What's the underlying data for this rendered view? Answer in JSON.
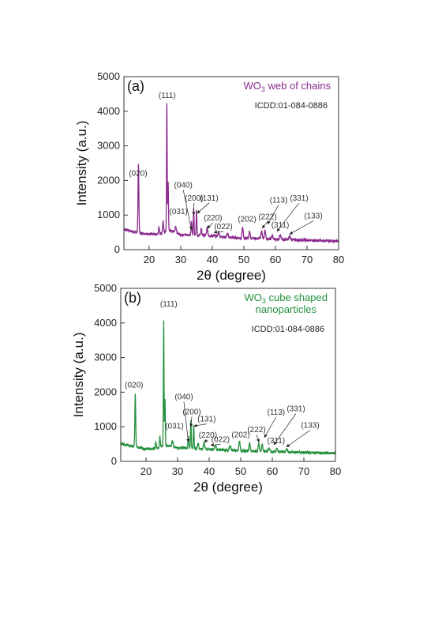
{
  "colors": {
    "a": "#8b2a8e",
    "b": "#23903c",
    "axis": "#333333"
  },
  "chart_data": [
    {
      "type": "line",
      "panel": "(a)",
      "title": "",
      "legend": {
        "main": "WO",
        "sub": "3",
        "rest": " web of chains",
        "lines": [],
        "placement": "top-right"
      },
      "reference": "ICDD:01-084-0886",
      "xlabel": "2θ (degree)",
      "ylabel": "Intensity (a.u.)",
      "xlim": [
        12,
        80
      ],
      "ylim": [
        0,
        5000
      ],
      "xticks": [
        20,
        30,
        40,
        50,
        60,
        70,
        80
      ],
      "yticks": [
        0,
        1000,
        2000,
        3000,
        4000,
        5000
      ],
      "grid": false,
      "baseline": [
        [
          12,
          590
        ],
        [
          14,
          540
        ],
        [
          16,
          500
        ],
        [
          18,
          470
        ],
        [
          20,
          450
        ],
        [
          22,
          440
        ],
        [
          24,
          480
        ],
        [
          26,
          560
        ],
        [
          28,
          520
        ],
        [
          30,
          430
        ],
        [
          34,
          420
        ],
        [
          38,
          410
        ],
        [
          42,
          380
        ],
        [
          46,
          350
        ],
        [
          50,
          330
        ],
        [
          55,
          320
        ],
        [
          60,
          300
        ],
        [
          65,
          290
        ],
        [
          70,
          275
        ],
        [
          75,
          260
        ],
        [
          80,
          250
        ]
      ],
      "peaks": [
        {
          "x": 16.6,
          "y": 1980,
          "w": 0.3
        },
        {
          "x": 23.1,
          "y": 200,
          "w": 0.3
        },
        {
          "x": 24.4,
          "y": 330,
          "w": 0.3
        },
        {
          "x": 25.6,
          "y": 3700,
          "w": 0.22
        },
        {
          "x": 26.0,
          "y": 1400,
          "w": 0.25
        },
        {
          "x": 28.4,
          "y": 180,
          "w": 0.4
        },
        {
          "x": 33.4,
          "y": 380,
          "w": 0.3
        },
        {
          "x": 34.1,
          "y": 780,
          "w": 0.25
        },
        {
          "x": 35.0,
          "y": 720,
          "w": 0.25
        },
        {
          "x": 36.5,
          "y": 180,
          "w": 0.4
        },
        {
          "x": 38.4,
          "y": 230,
          "w": 0.4
        },
        {
          "x": 42.0,
          "y": 120,
          "w": 0.5
        },
        {
          "x": 44.8,
          "y": 100,
          "w": 0.5
        },
        {
          "x": 49.6,
          "y": 310,
          "w": 0.4
        },
        {
          "x": 51.8,
          "y": 200,
          "w": 0.4
        },
        {
          "x": 55.6,
          "y": 230,
          "w": 0.4
        },
        {
          "x": 56.7,
          "y": 250,
          "w": 0.4
        },
        {
          "x": 59.0,
          "y": 100,
          "w": 0.5
        },
        {
          "x": 61.5,
          "y": 110,
          "w": 0.5
        },
        {
          "x": 64.5,
          "y": 90,
          "w": 0.5
        }
      ],
      "annotations": [
        {
          "text": "(020)",
          "x": 16.5,
          "y": 2140,
          "arrow": null
        },
        {
          "text": "(111)",
          "x": 25.7,
          "y": 4380,
          "arrow": null
        },
        {
          "text": "(040)",
          "x": 30.8,
          "y": 1790,
          "arrow": [
            33.4,
            580
          ]
        },
        {
          "text": "(031)",
          "x": 29.3,
          "y": 1030,
          "arrow": null
        },
        {
          "text": "(200)",
          "x": 34.2,
          "y": 1420,
          "arrow": [
            34.1,
            1000
          ]
        },
        {
          "text": "(131)",
          "x": 39.0,
          "y": 1420,
          "arrow": [
            35.2,
            1050
          ]
        },
        {
          "text": "(220)",
          "x": 40.2,
          "y": 840,
          "arrow": [
            38.4,
            620
          ]
        },
        {
          "text": "(022)",
          "x": 43.5,
          "y": 590,
          "arrow": [
            40.5,
            500
          ]
        },
        {
          "text": "(202)",
          "x": 51.0,
          "y": 810,
          "arrow": null
        },
        {
          "text": "(222)",
          "x": 57.5,
          "y": 880,
          "arrow": [
            55.8,
            620
          ]
        },
        {
          "text": "(113)",
          "x": 61.0,
          "y": 1360,
          "arrow": [
            57.5,
            740
          ]
        },
        {
          "text": "(331)",
          "x": 67.5,
          "y": 1420,
          "arrow": [
            60.5,
            530
          ]
        },
        {
          "text": "(311)",
          "x": 61.5,
          "y": 640,
          "arrow": null
        },
        {
          "text": "(133)",
          "x": 72.0,
          "y": 900,
          "arrow": [
            64.5,
            450
          ]
        }
      ]
    },
    {
      "type": "line",
      "panel": "(b)",
      "title": "",
      "legend": {
        "main": "WO",
        "sub": "3",
        "rest": " cube shaped",
        "lines": [
          "nanoparticles"
        ],
        "placement": "top-right"
      },
      "reference": "ICDD:01-084-0886",
      "xlabel": "2θ (degree)",
      "ylabel": "Intensity (a.u.)",
      "xlim": [
        12,
        80
      ],
      "ylim": [
        0,
        5000
      ],
      "xticks": [
        20,
        30,
        40,
        50,
        60,
        70,
        80
      ],
      "yticks": [
        0,
        1000,
        2000,
        3000,
        4000,
        5000
      ],
      "grid": false,
      "baseline": [
        [
          12,
          520
        ],
        [
          14,
          470
        ],
        [
          16,
          430
        ],
        [
          18,
          390
        ],
        [
          20,
          370
        ],
        [
          22,
          360
        ],
        [
          24,
          390
        ],
        [
          26,
          470
        ],
        [
          28,
          440
        ],
        [
          30,
          390
        ],
        [
          34,
          380
        ],
        [
          38,
          360
        ],
        [
          42,
          340
        ],
        [
          46,
          320
        ],
        [
          50,
          310
        ],
        [
          55,
          300
        ],
        [
          60,
          280
        ],
        [
          65,
          270
        ],
        [
          70,
          260
        ],
        [
          75,
          250
        ],
        [
          80,
          230
        ]
      ],
      "peaks": [
        {
          "x": 16.6,
          "y": 1520,
          "w": 0.3
        },
        {
          "x": 23.1,
          "y": 180,
          "w": 0.3
        },
        {
          "x": 24.4,
          "y": 300,
          "w": 0.3
        },
        {
          "x": 25.6,
          "y": 3640,
          "w": 0.22
        },
        {
          "x": 26.0,
          "y": 1300,
          "w": 0.25
        },
        {
          "x": 28.4,
          "y": 170,
          "w": 0.4
        },
        {
          "x": 33.4,
          "y": 330,
          "w": 0.3
        },
        {
          "x": 34.2,
          "y": 820,
          "w": 0.25
        },
        {
          "x": 35.1,
          "y": 680,
          "w": 0.25
        },
        {
          "x": 36.5,
          "y": 150,
          "w": 0.4
        },
        {
          "x": 38.4,
          "y": 200,
          "w": 0.4
        },
        {
          "x": 42.0,
          "y": 110,
          "w": 0.5
        },
        {
          "x": 46.6,
          "y": 130,
          "w": 0.5
        },
        {
          "x": 49.6,
          "y": 290,
          "w": 0.4
        },
        {
          "x": 52.8,
          "y": 220,
          "w": 0.4
        },
        {
          "x": 55.7,
          "y": 240,
          "w": 0.4
        },
        {
          "x": 56.8,
          "y": 210,
          "w": 0.4
        },
        {
          "x": 59.0,
          "y": 90,
          "w": 0.5
        },
        {
          "x": 61.5,
          "y": 100,
          "w": 0.5
        },
        {
          "x": 64.5,
          "y": 80,
          "w": 0.5
        }
      ],
      "annotations": [
        {
          "text": "(020)",
          "x": 16.2,
          "y": 2140,
          "arrow": null
        },
        {
          "text": "(111)",
          "x": 27.2,
          "y": 4480,
          "arrow": null
        },
        {
          "text": "(040)",
          "x": 32.0,
          "y": 1790,
          "arrow": [
            33.4,
            560
          ]
        },
        {
          "text": "(031)",
          "x": 29.0,
          "y": 950,
          "arrow": null
        },
        {
          "text": "(200)",
          "x": 34.5,
          "y": 1360,
          "arrow": [
            34.2,
            1000
          ]
        },
        {
          "text": "(131)",
          "x": 39.2,
          "y": 1150,
          "arrow": [
            35.2,
            1020
          ]
        },
        {
          "text": "(220)",
          "x": 39.6,
          "y": 690,
          "arrow": [
            38.4,
            560
          ]
        },
        {
          "text": "(022)",
          "x": 43.6,
          "y": 560,
          "arrow": [
            40.5,
            470
          ]
        },
        {
          "text": "(202)",
          "x": 50.0,
          "y": 700,
          "arrow": null
        },
        {
          "text": "(222)",
          "x": 55.0,
          "y": 840,
          "arrow": [
            55.8,
            560
          ]
        },
        {
          "text": "(113)",
          "x": 61.2,
          "y": 1350,
          "arrow": [
            57.5,
            690
          ]
        },
        {
          "text": "(331)",
          "x": 67.5,
          "y": 1450,
          "arrow": [
            60.5,
            480
          ]
        },
        {
          "text": "(311)",
          "x": 61.2,
          "y": 530,
          "arrow": null
        },
        {
          "text": "(133)",
          "x": 72.0,
          "y": 970,
          "arrow": [
            64.5,
            420
          ]
        }
      ]
    }
  ]
}
